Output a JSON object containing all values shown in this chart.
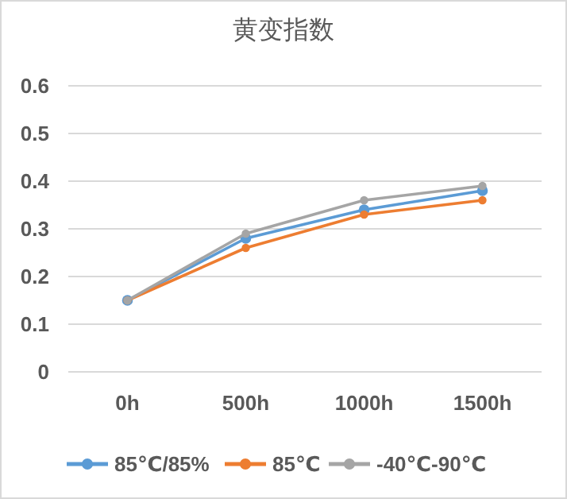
{
  "chart_data": {
    "type": "line",
    "title": "黄变指数",
    "categories": [
      "0h",
      "500h",
      "1000h",
      "1500h"
    ],
    "series": [
      {
        "name": "85℃/85%",
        "color": "#5b9bd5",
        "values": [
          0.15,
          0.28,
          0.34,
          0.38
        ]
      },
      {
        "name": "85℃",
        "color": "#ed7d31",
        "values": [
          0.15,
          0.26,
          0.33,
          0.36
        ]
      },
      {
        "name": "-40℃-90℃",
        "color": "#a5a5a5",
        "values": [
          0.15,
          0.29,
          0.36,
          0.39
        ]
      }
    ],
    "ylim": [
      0,
      0.6
    ],
    "yticks": [
      0,
      0.1,
      0.2,
      0.3,
      0.4,
      0.5,
      0.6
    ],
    "grid": "y",
    "legend": "bottom",
    "marker": "circle",
    "line_style": "solid"
  }
}
